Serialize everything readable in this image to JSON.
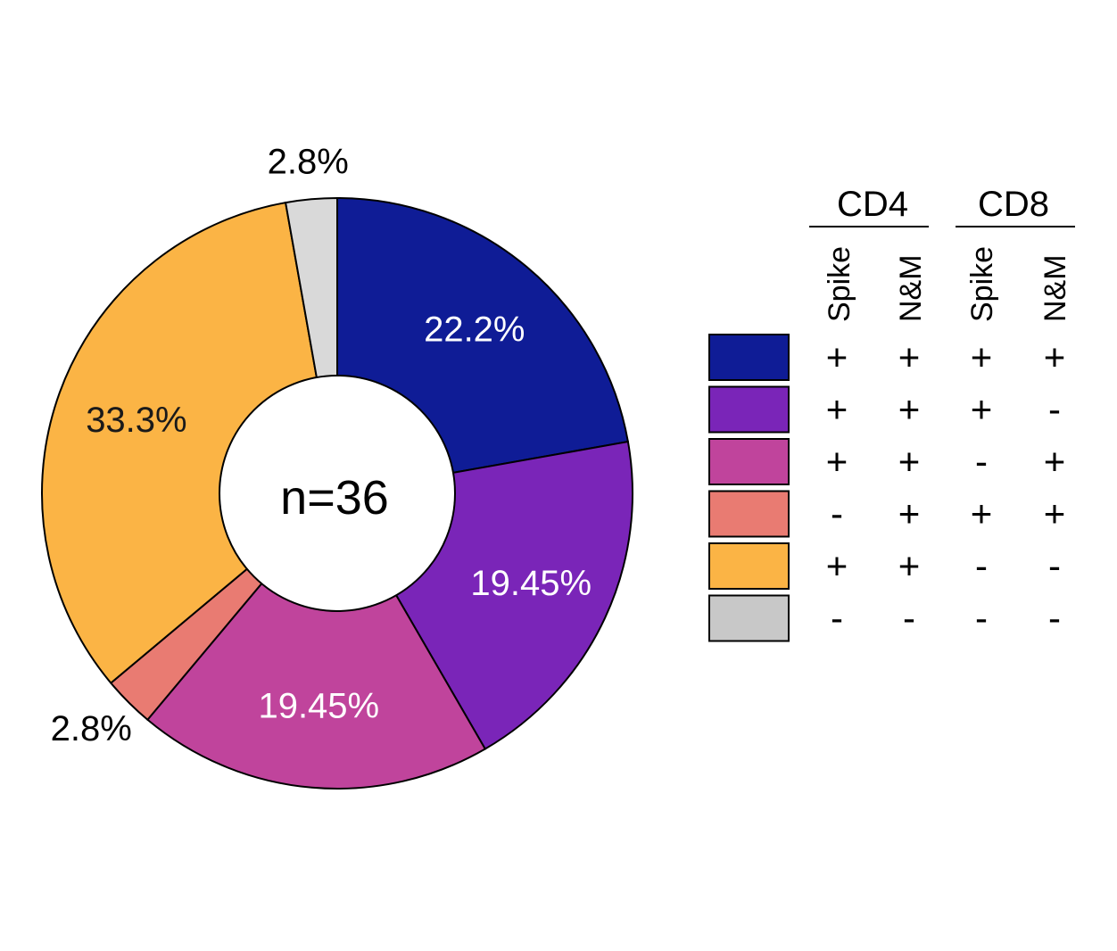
{
  "chart_data": {
    "type": "pie",
    "subtype": "donut",
    "center_label": "n=36",
    "slices": [
      {
        "label": "22.2%",
        "value": 22.2,
        "color": "#0f1c96",
        "label_color": "#ffffff",
        "cd4_spike": "+",
        "cd4_nm": "+",
        "cd8_spike": "+",
        "cd8_nm": "+"
      },
      {
        "label": "19.45%",
        "value": 19.45,
        "color": "#7a25b8",
        "label_color": "#ffffff",
        "cd4_spike": "+",
        "cd4_nm": "+",
        "cd8_spike": "+",
        "cd8_nm": "-"
      },
      {
        "label": "19.45%",
        "value": 19.45,
        "color": "#c0449c",
        "label_color": "#ffffff",
        "cd4_spike": "+",
        "cd4_nm": "+",
        "cd8_spike": "-",
        "cd8_nm": "+"
      },
      {
        "label": "2.8%",
        "value": 2.8,
        "color": "#e97b72",
        "label_color": "#111111",
        "cd4_spike": "-",
        "cd4_nm": "+",
        "cd8_spike": "+",
        "cd8_nm": "+"
      },
      {
        "label": "33.3%",
        "value": 33.3,
        "color": "#fbb445",
        "label_color": "#1a1a1a",
        "cd4_spike": "+",
        "cd4_nm": "+",
        "cd8_spike": "-",
        "cd8_nm": "-"
      },
      {
        "label": "2.8%",
        "value": 2.8,
        "color": "#d9d9d9",
        "label_color": "#111111",
        "cd4_spike": "-",
        "cd4_nm": "-",
        "cd8_spike": "-",
        "cd8_nm": "-"
      }
    ],
    "legend": {
      "groups": [
        {
          "name": "CD4",
          "columns": [
            "Spike",
            "N&M"
          ]
        },
        {
          "name": "CD8",
          "columns": [
            "Spike",
            "N&M"
          ]
        }
      ],
      "placement": "right"
    }
  }
}
